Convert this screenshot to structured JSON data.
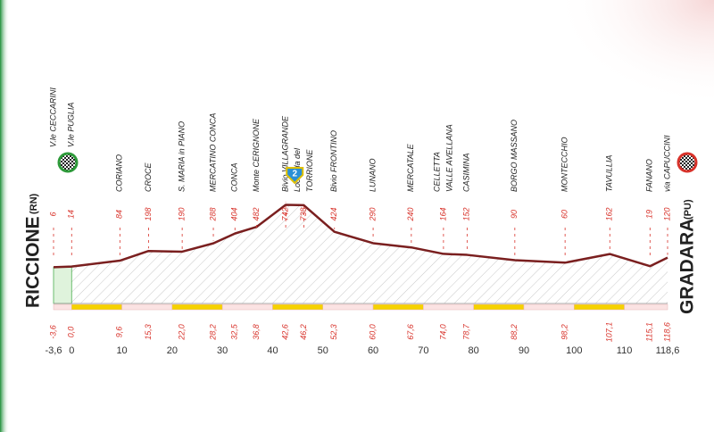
{
  "chart_data": {
    "type": "elevation-profile",
    "start": {
      "name": "RICCIONE",
      "province": "(RN)"
    },
    "finish": {
      "name": "GRADARA",
      "province": "(PU)"
    },
    "climb": {
      "category": "2",
      "km": 44.4
    },
    "xlim": [
      -3.6,
      118.6
    ],
    "xticks": [
      {
        "value": -3.6,
        "label": "-3,6"
      },
      0,
      10,
      20,
      30,
      40,
      50,
      60,
      70,
      80,
      90,
      100,
      {
        "value": 110,
        "label": "110"
      },
      {
        "value": 118.6,
        "label": "118,6"
      }
    ],
    "line_color": "#7a1f1f",
    "waypoints": [
      {
        "name": [
          "V.le CECCARINI"
        ],
        "altitude": 6,
        "km": -3.6,
        "km_label": "-3,6"
      },
      {
        "name": [
          "V.le PUGLIA"
        ],
        "altitude": 14,
        "km": 0,
        "km_label": "0,0"
      },
      {
        "name": [
          "CORIANO"
        ],
        "altitude": 84,
        "km": 9.6,
        "km_label": "9,6"
      },
      {
        "name": [
          "CROCE"
        ],
        "altitude": 198,
        "km": 15.3,
        "km_label": "15,3"
      },
      {
        "name": [
          "S. MARIA in PIANO"
        ],
        "altitude": 190,
        "km": 22.0,
        "km_label": "22,0"
      },
      {
        "name": [
          "MERCATINO CONCA"
        ],
        "altitude": 288,
        "km": 28.2,
        "km_label": "28,2"
      },
      {
        "name": [
          "CONCA"
        ],
        "altitude": 404,
        "km": 32.5,
        "km_label": "32,5"
      },
      {
        "name": [
          "Monte CERIGNONE"
        ],
        "altitude": 482,
        "km": 36.8,
        "km_label": "36,8"
      },
      {
        "name": [
          "Bivio VILLAGRANDE"
        ],
        "altitude": 742,
        "km": 42.6,
        "km_label": "42,6"
      },
      {
        "name": [
          "Locanda del",
          "TORRIONE"
        ],
        "altitude": 738,
        "km": 46.2,
        "km_label": "46,2"
      },
      {
        "name": [
          "Bivio FRONTINO"
        ],
        "altitude": 424,
        "km": 52.3,
        "km_label": "52,3"
      },
      {
        "name": [
          "LUNANO"
        ],
        "altitude": 290,
        "km": 60.0,
        "km_label": "60,0"
      },
      {
        "name": [
          "MERCATALE"
        ],
        "altitude": 240,
        "km": 67.6,
        "km_label": "67,6"
      },
      {
        "name": [
          "CELLETTA",
          "VALLE AVELLANA"
        ],
        "altitude": 164,
        "km": 74.0,
        "km_label": "74,0"
      },
      {
        "name": [
          "CASIMINA"
        ],
        "altitude": 152,
        "km": 78.7,
        "km_label": "78,7"
      },
      {
        "name": [
          "BORGO MASSANO"
        ],
        "altitude": 90,
        "km": 88.2,
        "km_label": "88,2"
      },
      {
        "name": [
          "MONTECCHIO"
        ],
        "altitude": 60,
        "km": 98.2,
        "km_label": "98,2"
      },
      {
        "name": [
          "TAVULLIA"
        ],
        "altitude": 162,
        "km": 107.1,
        "km_label": "107,1"
      },
      {
        "name": [
          "FANANO"
        ],
        "altitude": 19,
        "km": 115.1,
        "km_label": "115,1"
      },
      {
        "name": [
          "via CAPUCCINI"
        ],
        "altitude": 120,
        "km": 118.6,
        "km_label": "118,6"
      }
    ]
  }
}
